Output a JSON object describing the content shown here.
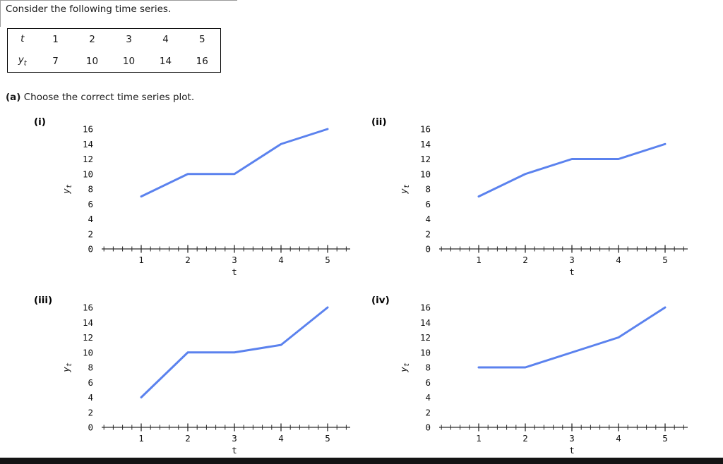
{
  "page": {
    "intro": "Consider the following time series.",
    "question_part": "(a)",
    "question_text": "Choose the correct time series plot."
  },
  "table": {
    "row1": {
      "label_base": "t",
      "label_sub": "",
      "values": [
        "1",
        "2",
        "3",
        "4",
        "5"
      ]
    },
    "row2": {
      "label_base": "y",
      "label_sub": "t",
      "values": [
        "7",
        "10",
        "10",
        "14",
        "16"
      ]
    }
  },
  "chart_data": [
    {
      "type": "line",
      "label": "(i)",
      "x": [
        1,
        2,
        3,
        4,
        5
      ],
      "y": [
        7,
        10,
        10,
        14,
        16
      ],
      "xlabel": "t",
      "ylabel_base": "y",
      "ylabel_sub": "t",
      "ylim": [
        0,
        16
      ],
      "yticks": [
        16,
        14,
        12,
        10,
        8,
        6,
        4,
        2,
        0
      ],
      "xticks": [
        1,
        2,
        3,
        4,
        5
      ],
      "minor_tick_step": 0.2,
      "grid": false,
      "legend": "none"
    },
    {
      "type": "line",
      "label": "(ii)",
      "x": [
        1,
        2,
        3,
        4,
        5
      ],
      "y": [
        7,
        10,
        12,
        12,
        14
      ],
      "xlabel": "t",
      "ylabel_base": "y",
      "ylabel_sub": "t",
      "ylim": [
        0,
        16
      ],
      "yticks": [
        16,
        14,
        12,
        10,
        8,
        6,
        4,
        2,
        0
      ],
      "xticks": [
        1,
        2,
        3,
        4,
        5
      ],
      "minor_tick_step": 0.2,
      "grid": false,
      "legend": "none"
    },
    {
      "type": "line",
      "label": "(iii)",
      "x": [
        1,
        2,
        3,
        4,
        5
      ],
      "y": [
        4,
        10,
        10,
        11,
        16
      ],
      "xlabel": "t",
      "ylabel_base": "y",
      "ylabel_sub": "t",
      "ylim": [
        0,
        16
      ],
      "yticks": [
        16,
        14,
        12,
        10,
        8,
        6,
        4,
        2,
        0
      ],
      "xticks": [
        1,
        2,
        3,
        4,
        5
      ],
      "minor_tick_step": 0.2,
      "grid": false,
      "legend": "none"
    },
    {
      "type": "line",
      "label": "(iv)",
      "x": [
        1,
        2,
        3,
        4,
        5
      ],
      "y": [
        8,
        8,
        10,
        12,
        16
      ],
      "xlabel": "t",
      "ylabel_base": "y",
      "ylabel_sub": "t",
      "ylim": [
        0,
        16
      ],
      "yticks": [
        16,
        14,
        12,
        10,
        8,
        6,
        4,
        2,
        0
      ],
      "xticks": [
        1,
        2,
        3,
        4,
        5
      ],
      "minor_tick_step": 0.2,
      "grid": false,
      "legend": "none"
    }
  ],
  "style": {
    "line_color": "#5b82ee",
    "axis_color": "#2b2b2b",
    "text_color": "#111111"
  }
}
